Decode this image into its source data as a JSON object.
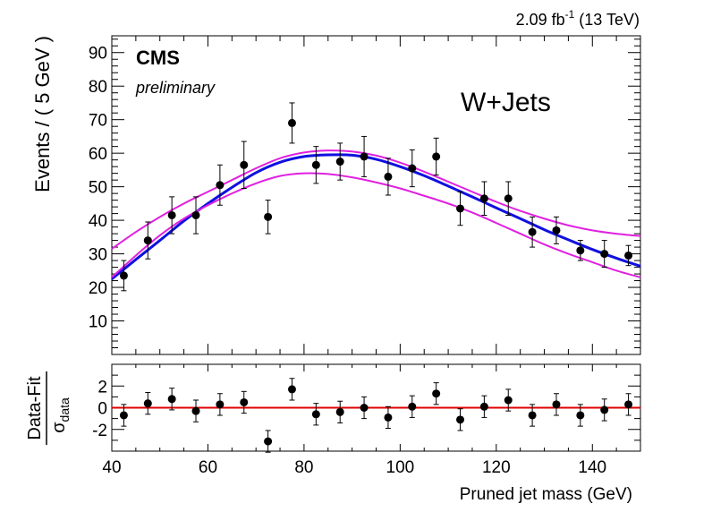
{
  "header": {
    "lumi": "2.09 fb",
    "lumi_exp": "-1",
    "energy": " (13 TeV)"
  },
  "labels": {
    "experiment": "CMS",
    "status": "preliminary",
    "process": "W+Jets",
    "ylabel_top": "Events / ( 5 GeV )",
    "ylabel_bottom_num": "Data-Fit",
    "ylabel_bottom_den": "σ",
    "ylabel_bottom_den_sub": "data",
    "xlabel": "Pruned jet mass (GeV)"
  },
  "colors": {
    "fit": "#1010e0",
    "band": "#e020e0",
    "zero_line": "#e00000",
    "data": "#000000"
  },
  "chart_data": [
    {
      "type": "scatter",
      "title": "",
      "xlabel": "",
      "ylabel": "Events / ( 5 GeV )",
      "xlim": [
        40,
        150
      ],
      "ylim": [
        0,
        95
      ],
      "yticks": [
        10,
        20,
        30,
        40,
        50,
        60,
        70,
        80,
        90
      ],
      "x": [
        42.5,
        47.5,
        52.5,
        57.5,
        62.5,
        67.5,
        72.5,
        77.5,
        82.5,
        87.5,
        92.5,
        97.5,
        102.5,
        107.5,
        112.5,
        117.5,
        122.5,
        127.5,
        132.5,
        137.5,
        142.5,
        147.5
      ],
      "series": [
        {
          "name": "",
          "kind": "data",
          "values": [
            23.5,
            34,
            41.5,
            41.5,
            50.5,
            56.5,
            41,
            69,
            56.5,
            57.5,
            59,
            53,
            55.5,
            59,
            43.5,
            46.5,
            46.5,
            36.5,
            37,
            31,
            30,
            29.5
          ],
          "errors": [
            4.5,
            5.5,
            5.5,
            5.5,
            6,
            7,
            5,
            6,
            5.5,
            5.5,
            6,
            5.5,
            5.5,
            5.5,
            5,
            5,
            5,
            4.5,
            4,
            3,
            4,
            3
          ]
        },
        {
          "name": "",
          "kind": "fit",
          "x": [
            40,
            45,
            50,
            55,
            60,
            65,
            70,
            75,
            80,
            85,
            90,
            95,
            100,
            105,
            110,
            115,
            120,
            125,
            130,
            135,
            140,
            145,
            150
          ],
          "values": [
            22.5,
            28.3,
            34,
            39.8,
            45,
            49.8,
            54.2,
            57.3,
            59,
            59.5,
            59.4,
            58.2,
            56,
            53.3,
            50.2,
            47,
            43.7,
            40.5,
            37.2,
            34.2,
            31.3,
            28.7,
            26.3
          ]
        },
        {
          "name": "",
          "kind": "band_upper",
          "x": [
            40,
            45,
            50,
            55,
            60,
            65,
            70,
            75,
            80,
            85,
            90,
            95,
            100,
            105,
            110,
            115,
            120,
            125,
            130,
            135,
            140,
            145,
            150
          ],
          "values": [
            31.5,
            36.5,
            41,
            45,
            48.5,
            52,
            55.5,
            58.5,
            60.2,
            60.8,
            60.5,
            59.3,
            57.2,
            54.5,
            51.5,
            48.5,
            45.5,
            42.8,
            40.5,
            38.5,
            37,
            36,
            35.3
          ]
        },
        {
          "name": "",
          "kind": "band_lower",
          "x": [
            40,
            45,
            50,
            55,
            60,
            65,
            70,
            75,
            80,
            85,
            90,
            95,
            100,
            105,
            110,
            115,
            120,
            125,
            130,
            135,
            140,
            145,
            150
          ],
          "values": [
            23,
            29.5,
            35.5,
            40.5,
            44.5,
            48,
            51,
            53.2,
            54,
            53.8,
            52.8,
            51.3,
            49.5,
            47.3,
            45,
            42.3,
            39.2,
            36,
            32.8,
            30,
            27.5,
            25,
            23
          ]
        }
      ]
    },
    {
      "type": "scatter",
      "title": "",
      "xlabel": "Pruned jet mass (GeV)",
      "ylabel": "Data-Fit / σ_data",
      "xlim": [
        40,
        150
      ],
      "ylim": [
        -4,
        4
      ],
      "xticks": [
        40,
        60,
        80,
        100,
        120,
        140
      ],
      "yticks": [
        -2,
        0,
        2
      ],
      "x": [
        42.5,
        47.5,
        52.5,
        57.5,
        62.5,
        67.5,
        72.5,
        77.5,
        82.5,
        87.5,
        92.5,
        97.5,
        102.5,
        107.5,
        112.5,
        117.5,
        122.5,
        127.5,
        132.5,
        137.5,
        142.5,
        147.5
      ],
      "series": [
        {
          "name": "",
          "kind": "pull",
          "values": [
            -0.7,
            0.4,
            0.8,
            -0.3,
            0.3,
            0.5,
            -3.1,
            1.7,
            -0.6,
            -0.4,
            0.0,
            -0.9,
            0.1,
            1.3,
            -1.1,
            0.1,
            0.7,
            -0.7,
            0.3,
            -0.7,
            -0.2,
            0.3
          ],
          "errors": [
            1,
            1,
            1,
            1,
            1,
            1,
            1,
            1,
            1,
            1,
            1,
            1,
            1,
            1,
            1,
            1,
            1,
            1,
            1,
            1,
            1,
            1
          ]
        }
      ]
    }
  ]
}
